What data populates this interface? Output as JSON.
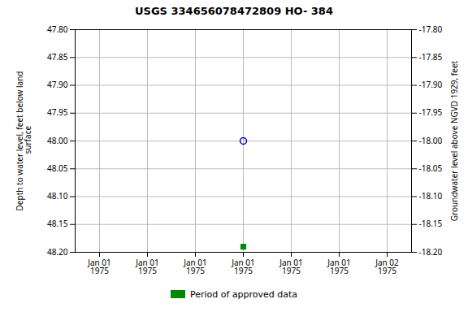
{
  "chart_data": {
    "type": "scatter",
    "title": "USGS 334656078472809 HO- 384",
    "categories": [
      "Jan 01\n1975",
      "Jan 01\n1975",
      "Jan 01\n1975",
      "Jan 01\n1975",
      "Jan 01\n1975",
      "Jan 01\n1975",
      "Jan 02\n1975"
    ],
    "series": [
      {
        "color": "#0000cc",
        "marker": "circle",
        "values": [
          null,
          null,
          null,
          48.0,
          null,
          null,
          null
        ]
      },
      {
        "name": "Period of approved data",
        "color": "#008800",
        "marker": "square",
        "values": [
          null,
          null,
          null,
          48.19,
          null,
          null,
          null
        ]
      }
    ],
    "ylabel": "Depth to water level, feet below land\n surface",
    "y2label": "Groundwater level above NGVD 1929, feet",
    "ylim": [
      48.2,
      47.8
    ],
    "yticks": [
      {
        "value": 47.8,
        "label": "47.80"
      },
      47.85,
      {
        "value": 47.9,
        "label": "47.90"
      },
      47.95,
      {
        "value": 48.0,
        "label": "48.00"
      },
      48.05,
      {
        "value": 48.1,
        "label": "48.10"
      },
      48.15,
      {
        "value": 48.2,
        "label": "48.20"
      }
    ],
    "y2lim": [
      -18.2,
      -17.8
    ],
    "y2ticks": [
      {
        "value": -17.8,
        "label": "-17.80"
      },
      -17.85,
      {
        "value": -17.9,
        "label": "-17.90"
      },
      -17.95,
      {
        "value": -18.0,
        "label": "-18.00"
      },
      -18.05,
      {
        "value": -18.1,
        "label": "-18.10"
      },
      -18.15,
      {
        "value": -18.2,
        "label": "-18.20"
      }
    ],
    "grid": true,
    "legend": "bottom"
  }
}
